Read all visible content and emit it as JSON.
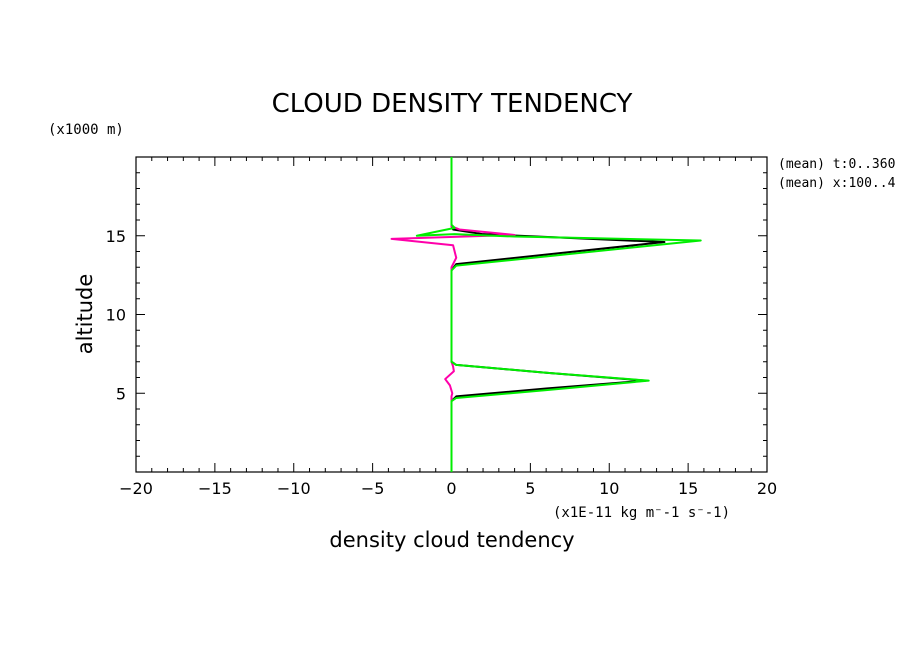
{
  "chart_data": {
    "type": "line",
    "title": "CLOUD DENSITY TENDENCY",
    "xlabel": "density cloud tendency",
    "ylabel": "altitude",
    "x_units": "(x1E-11 kg m⁻-1 s⁻-1)",
    "y_units": "(x1000 m)",
    "xlim": [
      -20,
      20
    ],
    "ylim": [
      0,
      20
    ],
    "x_ticks": [
      -20,
      -15,
      -10,
      -5,
      0,
      5,
      10,
      15,
      20
    ],
    "y_ticks": [
      5,
      10,
      15
    ],
    "x_tick_labels": [
      "−20",
      "−15",
      "−10",
      "−5",
      "0",
      "5",
      "10",
      "15",
      "20"
    ],
    "y_tick_labels": [
      "5",
      "10",
      "15"
    ],
    "annotations": [
      "(mean) t:0..360",
      "(mean) x:100..4"
    ],
    "grid": false,
    "series": [
      {
        "color": "#000000",
        "points": [
          [
            0,
            0
          ],
          [
            0,
            4.5
          ],
          [
            0.3,
            4.8
          ],
          [
            6.0,
            5.3
          ],
          [
            12.3,
            5.8
          ],
          [
            6.0,
            6.3
          ],
          [
            0.3,
            6.8
          ],
          [
            0,
            7.0
          ],
          [
            0,
            12.8
          ],
          [
            0.3,
            13.2
          ],
          [
            13.5,
            14.6
          ],
          [
            2.0,
            15.1
          ],
          [
            0.1,
            15.4
          ],
          [
            0,
            15.6
          ],
          [
            0,
            20
          ]
        ]
      },
      {
        "color": "#ff00aa",
        "points": [
          [
            0,
            0
          ],
          [
            0,
            4.8
          ],
          [
            0.05,
            5.0
          ],
          [
            -0.1,
            5.5
          ],
          [
            -0.4,
            5.9
          ],
          [
            0.15,
            6.4
          ],
          [
            0.1,
            6.7
          ],
          [
            0,
            7.0
          ],
          [
            0,
            13.0
          ],
          [
            0.3,
            13.6
          ],
          [
            0.1,
            14.4
          ],
          [
            -3.8,
            14.8
          ],
          [
            4.0,
            15.05
          ],
          [
            0.5,
            15.4
          ],
          [
            0,
            15.6
          ],
          [
            0,
            20
          ]
        ]
      },
      {
        "color": "#00ee00",
        "points": [
          [
            0,
            0
          ],
          [
            0,
            4.5
          ],
          [
            0.3,
            4.7
          ],
          [
            6.0,
            5.2
          ],
          [
            12.5,
            5.8
          ],
          [
            6.0,
            6.3
          ],
          [
            0.3,
            6.8
          ],
          [
            0,
            7.0
          ],
          [
            0,
            12.8
          ],
          [
            0.3,
            13.1
          ],
          [
            15.8,
            14.7
          ],
          [
            4.0,
            14.95
          ],
          [
            0.2,
            15.1
          ],
          [
            -2.2,
            15.0
          ],
          [
            0.2,
            15.5
          ],
          [
            0,
            15.7
          ],
          [
            0,
            20
          ]
        ]
      }
    ]
  }
}
